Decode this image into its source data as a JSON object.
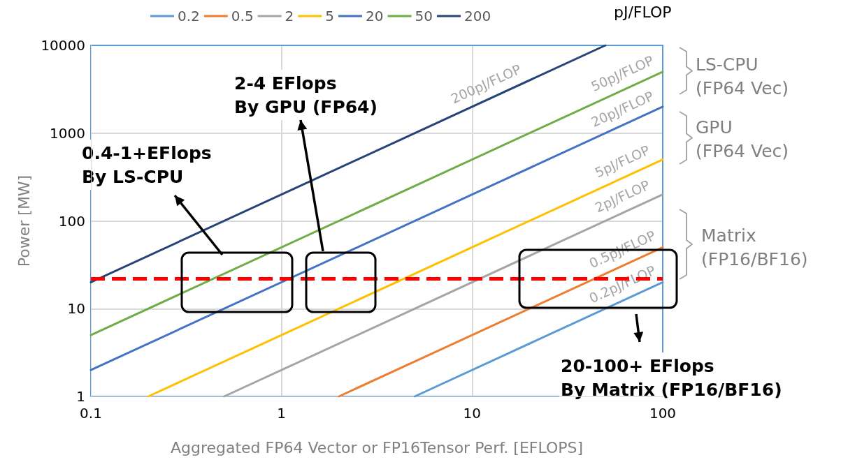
{
  "chart_data": {
    "type": "line",
    "xlabel": "Aggregated FP64 Vector or FP16Tensor Perf. [EFLOPS]",
    "ylabel": "Power [MW]",
    "legend_title": "pJ/FLOP",
    "legend": "top",
    "log": "xy",
    "grid": true,
    "marker": "none",
    "xlim": [
      0.1,
      100
    ],
    "xticks": [
      0.1,
      1,
      10,
      100
    ],
    "ylim": [
      1,
      10000
    ],
    "yticks": [
      1,
      10,
      100,
      1000,
      10000
    ],
    "series": [
      {
        "name": "0.2",
        "color": "#5b9bd5",
        "x": [
          5,
          100
        ],
        "values": [
          1,
          20
        ]
      },
      {
        "name": "0.5",
        "color": "#ed7d31",
        "x": [
          2,
          100
        ],
        "values": [
          1,
          50
        ]
      },
      {
        "name": "2",
        "color": "#a5a5a5",
        "x": [
          0.5,
          100
        ],
        "values": [
          1,
          200
        ]
      },
      {
        "name": "5",
        "color": "#ffc000",
        "x": [
          0.2,
          100
        ],
        "values": [
          1,
          500
        ]
      },
      {
        "name": "20",
        "color": "#4472c4",
        "x": [
          0.1,
          100
        ],
        "values": [
          2,
          2000
        ]
      },
      {
        "name": "50",
        "color": "#70ad47",
        "x": [
          0.1,
          100
        ],
        "values": [
          5,
          5000
        ]
      },
      {
        "name": "200",
        "color": "#264478",
        "x": [
          0.1,
          50
        ],
        "values": [
          20,
          10000
        ]
      }
    ],
    "ref_lines": [
      {
        "axis": "y",
        "value": 22,
        "color": "#ff0000",
        "line_style": "dashed"
      }
    ],
    "annotations": [
      "200pJ/FLOP",
      "50pJ/FLOP",
      "20pJ/FLOP",
      "5pJ/FLOP",
      "2pJ/FLOP",
      "0.5pJ/FLOP",
      "0.2pJ/FLOP",
      "0.4-1+EFlops\nBy LS-CPU",
      "2-4 EFlops\nBy GPU (FP64)",
      "20-100+ EFlops\nBy Matrix (FP16/BF16)",
      "LS-CPU\n(FP64 Vec)",
      "GPU\n(FP64 Vec)",
      "Matrix\n(FP16/BF16)"
    ]
  }
}
